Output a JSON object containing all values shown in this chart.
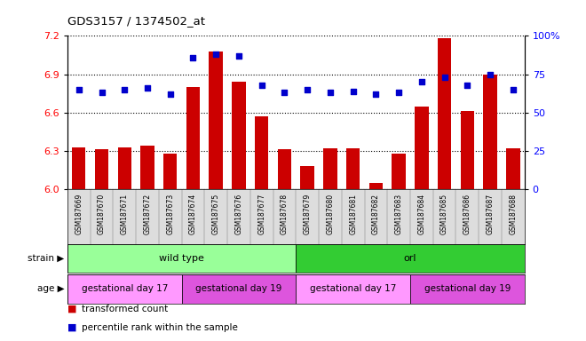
{
  "title": "GDS3157 / 1374502_at",
  "samples": [
    "GSM187669",
    "GSM187670",
    "GSM187671",
    "GSM187672",
    "GSM187673",
    "GSM187674",
    "GSM187675",
    "GSM187676",
    "GSM187677",
    "GSM187678",
    "GSM187679",
    "GSM187680",
    "GSM187681",
    "GSM187682",
    "GSM187683",
    "GSM187684",
    "GSM187685",
    "GSM187686",
    "GSM187687",
    "GSM187688"
  ],
  "transformed_counts": [
    6.33,
    6.31,
    6.33,
    6.34,
    6.28,
    6.8,
    7.08,
    6.84,
    6.57,
    6.31,
    6.18,
    6.32,
    6.32,
    6.05,
    6.28,
    6.65,
    7.18,
    6.61,
    6.9,
    6.32
  ],
  "percentile_ranks": [
    65,
    63,
    65,
    66,
    62,
    86,
    88,
    87,
    68,
    63,
    65,
    63,
    64,
    62,
    63,
    70,
    73,
    68,
    75,
    65
  ],
  "ylim_left": [
    6.0,
    7.2
  ],
  "ylim_right": [
    0,
    100
  ],
  "yticks_left": [
    6.0,
    6.3,
    6.6,
    6.9,
    7.2
  ],
  "yticks_right": [
    0,
    25,
    50,
    75,
    100
  ],
  "bar_color": "#cc0000",
  "dot_color": "#0000cc",
  "strain_groups": [
    {
      "label": "wild type",
      "start": 0,
      "end": 10,
      "color": "#99ff99"
    },
    {
      "label": "orl",
      "start": 10,
      "end": 20,
      "color": "#33cc33"
    }
  ],
  "age_groups": [
    {
      "label": "gestational day 17",
      "start": 0,
      "end": 5,
      "color": "#ff99ff"
    },
    {
      "label": "gestational day 19",
      "start": 5,
      "end": 10,
      "color": "#dd55dd"
    },
    {
      "label": "gestational day 17",
      "start": 10,
      "end": 15,
      "color": "#ff99ff"
    },
    {
      "label": "gestational day 19",
      "start": 15,
      "end": 20,
      "color": "#dd55dd"
    }
  ],
  "xtick_bg": "#dddddd",
  "fig_bg": "#ffffff"
}
